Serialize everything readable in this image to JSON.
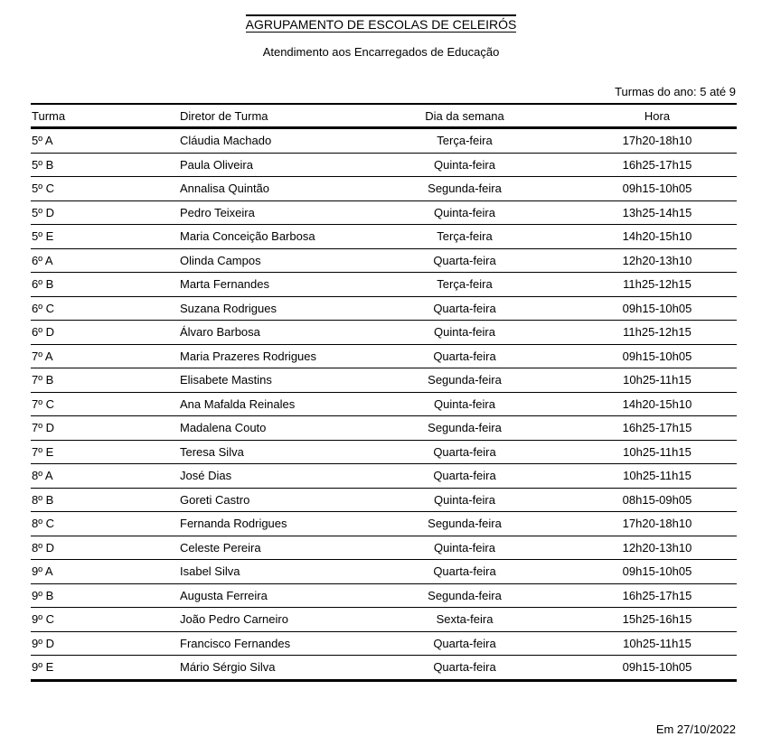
{
  "title": "AGRUPAMENTO DE ESCOLAS DE CELEIRÓS",
  "subtitle": "Atendimento aos Encarregados de Educação",
  "range": "Turmas do ano: 5 até 9",
  "headers": [
    "Turma",
    "Diretor de Turma",
    "Dia da semana",
    "Hora"
  ],
  "rows": [
    [
      "5º A",
      "Cláudia Machado",
      "Terça-feira",
      "17h20-18h10"
    ],
    [
      "5º B",
      "Paula Oliveira",
      "Quinta-feira",
      "16h25-17h15"
    ],
    [
      "5º C",
      "Annalisa Quintão",
      "Segunda-feira",
      "09h15-10h05"
    ],
    [
      "5º D",
      "Pedro Teixeira",
      "Quinta-feira",
      "13h25-14h15"
    ],
    [
      "5º E",
      "Maria Conceição Barbosa",
      "Terça-feira",
      "14h20-15h10"
    ],
    [
      "6º A",
      "Olinda Campos",
      "Quarta-feira",
      "12h20-13h10"
    ],
    [
      "6º B",
      "Marta Fernandes",
      "Terça-feira",
      "11h25-12h15"
    ],
    [
      "6º C",
      "Suzana Rodrigues",
      "Quarta-feira",
      "09h15-10h05"
    ],
    [
      "6º D",
      "Álvaro Barbosa",
      "Quinta-feira",
      "11h25-12h15"
    ],
    [
      "7º A",
      "Maria Prazeres Rodrigues",
      "Quarta-feira",
      "09h15-10h05"
    ],
    [
      "7º B",
      "Elisabete Mastins",
      "Segunda-feira",
      "10h25-11h15"
    ],
    [
      "7º C",
      "Ana Mafalda Reinales",
      "Quinta-feira",
      "14h20-15h10"
    ],
    [
      "7º D",
      "Madalena Couto",
      "Segunda-feira",
      "16h25-17h15"
    ],
    [
      "7º E",
      "Teresa Silva",
      "Quarta-feira",
      "10h25-11h15"
    ],
    [
      "8º A",
      "José Dias",
      "Quarta-feira",
      "10h25-11h15"
    ],
    [
      "8º B",
      "Goreti Castro",
      "Quinta-feira",
      "08h15-09h05"
    ],
    [
      "8º C",
      "Fernanda Rodrigues",
      "Segunda-feira",
      "17h20-18h10"
    ],
    [
      "8º D",
      "Celeste Pereira",
      "Quinta-feira",
      "12h20-13h10"
    ],
    [
      "9º A",
      "Isabel Silva",
      "Quarta-feira",
      "09h15-10h05"
    ],
    [
      "9º B",
      "Augusta Ferreira",
      "Segunda-feira",
      "16h25-17h15"
    ],
    [
      "9º C",
      "João Pedro Carneiro",
      "Sexta-feira",
      "15h25-16h15"
    ],
    [
      "9º D",
      "Francisco Fernandes",
      "Quarta-feira",
      "10h25-11h15"
    ],
    [
      "9º E",
      "Mário Sérgio Silva",
      "Quarta-feira",
      "09h15-10h05"
    ]
  ],
  "footer": "Em  27/10/2022"
}
